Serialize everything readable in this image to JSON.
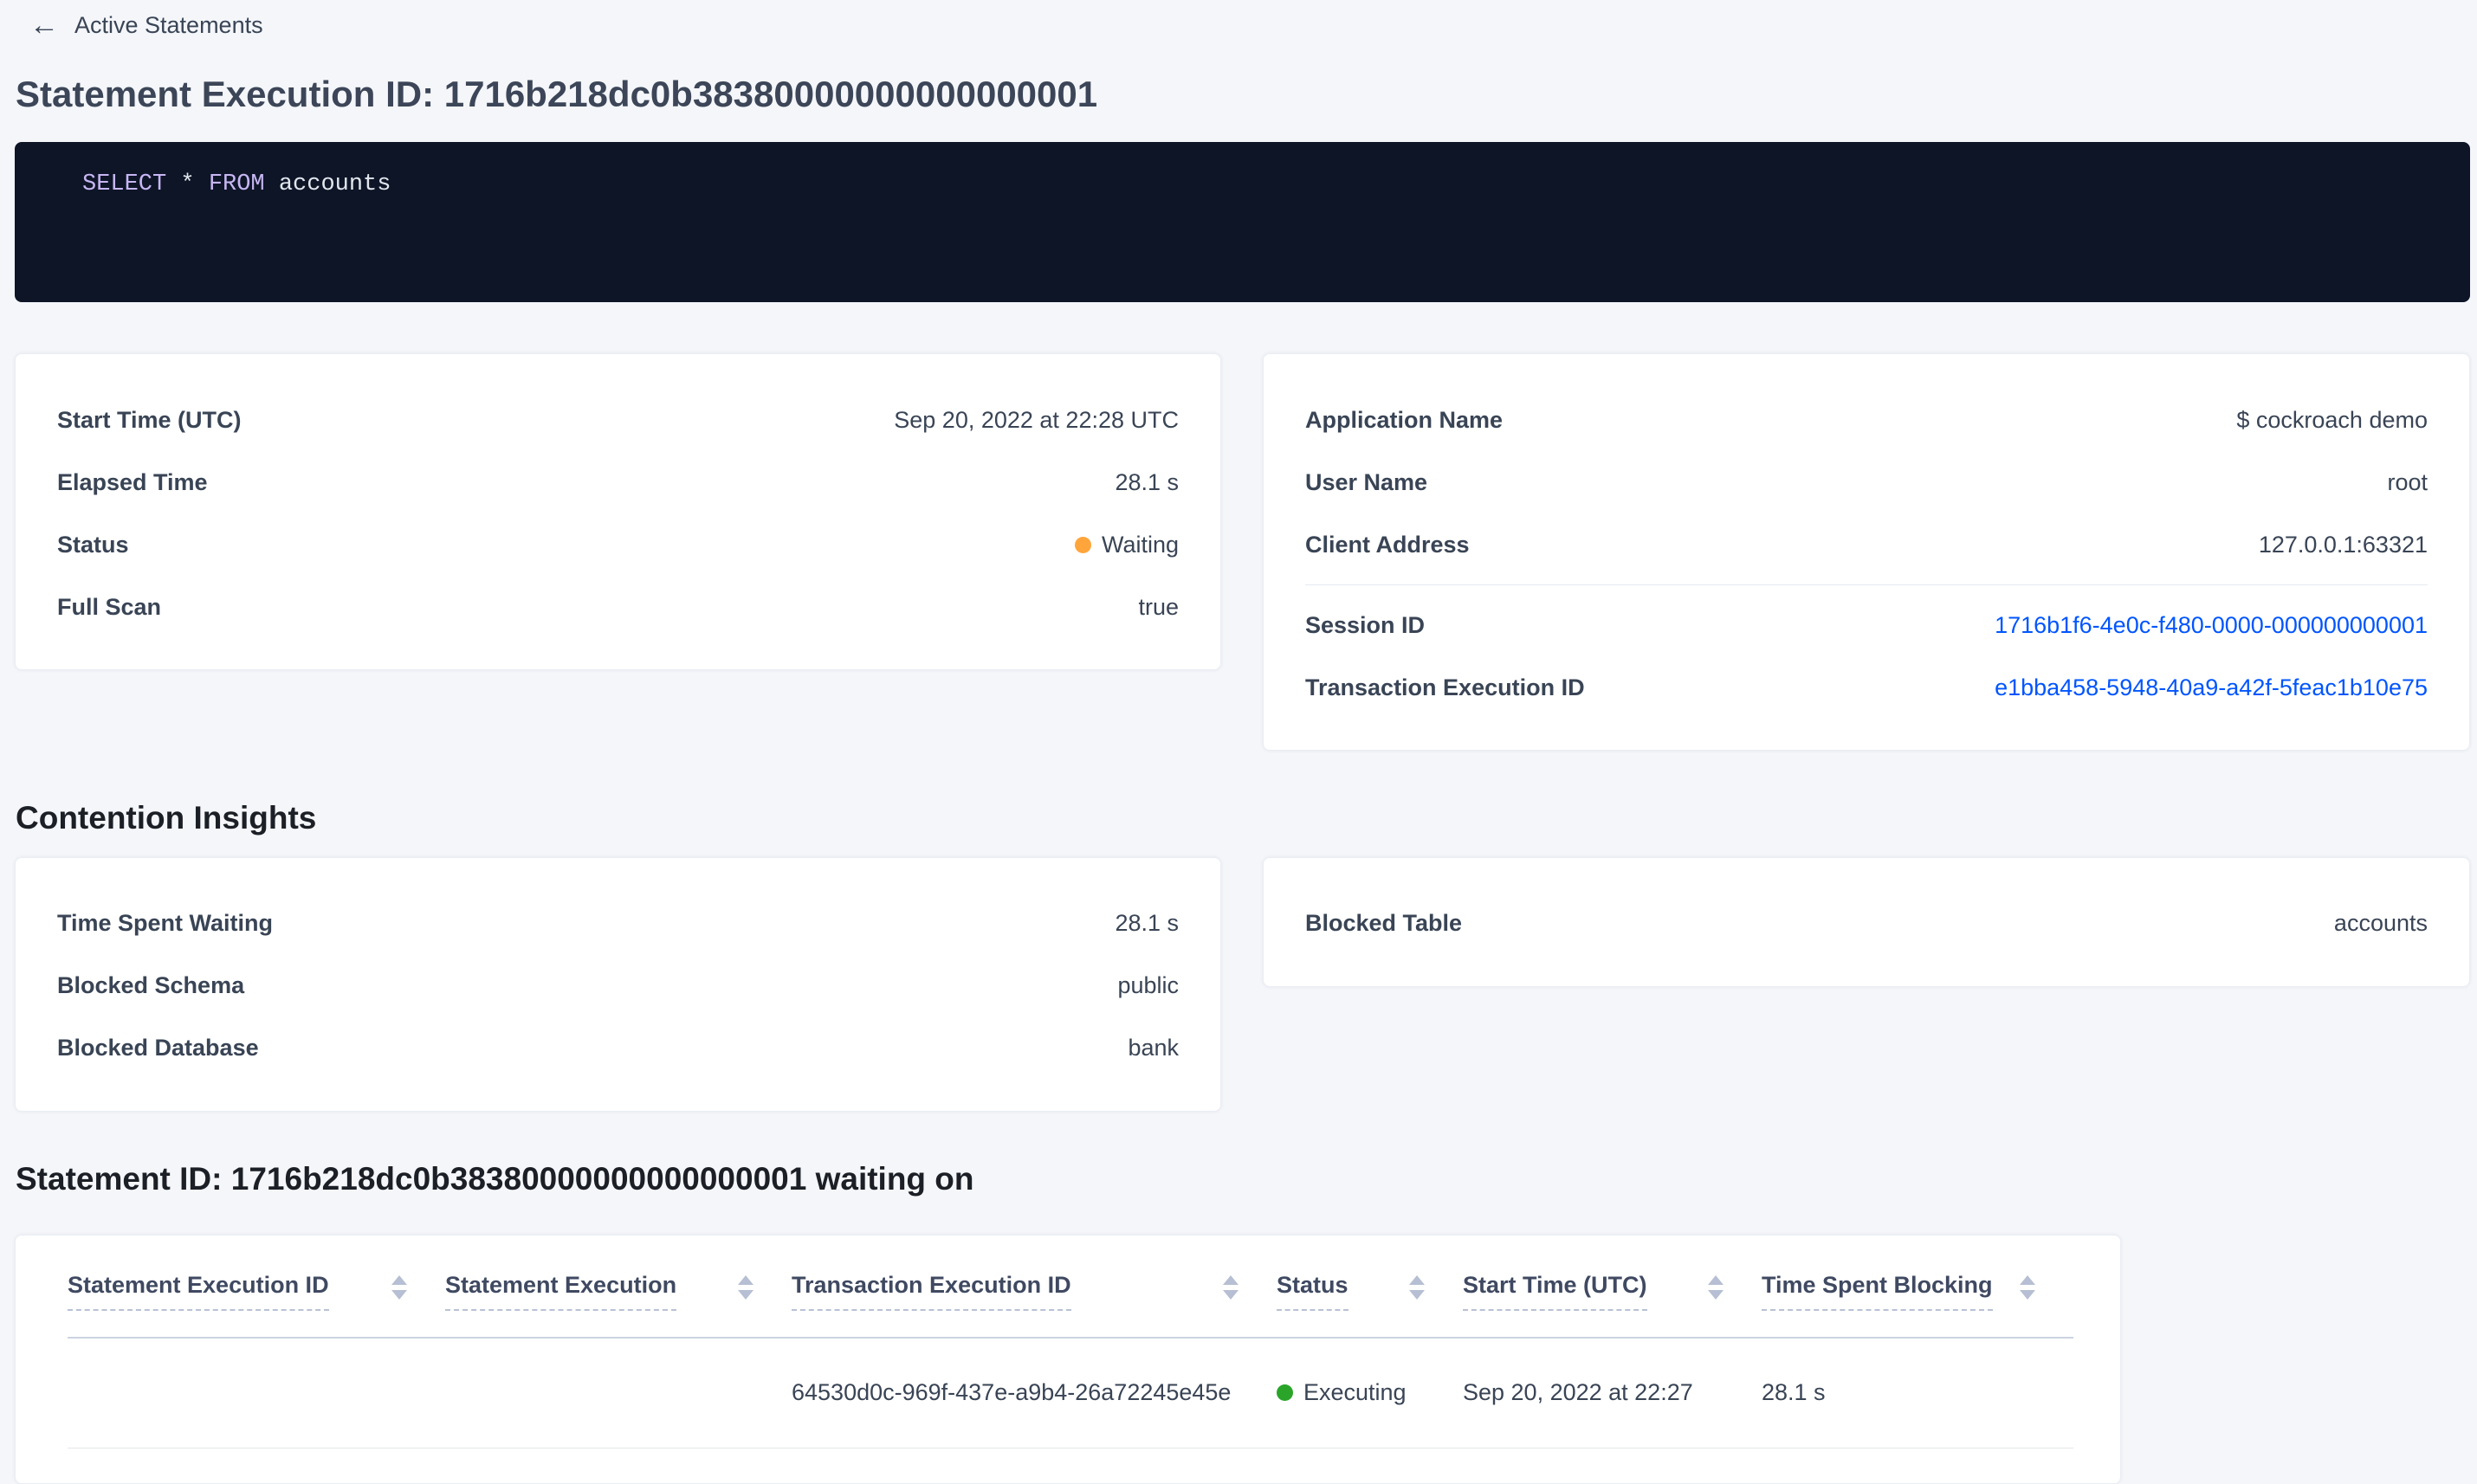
{
  "colors": {
    "page_bg": "#f4f6fa",
    "link": "#0055ff",
    "status_waiting": "#ffa53b",
    "status_executing": "#2aa52a"
  },
  "header": {
    "back_icon": "←",
    "back_label": "Active Statements",
    "title": "Statement Execution ID: 1716b218dc0b38380000000000000001"
  },
  "sql": {
    "kw_select": "SELECT",
    "star": " * ",
    "kw_from": "FROM",
    "ident": " accounts"
  },
  "overview": {
    "left": {
      "rows": [
        {
          "label": "Start Time (UTC)",
          "value": "Sep 20, 2022 at 22:28 UTC"
        },
        {
          "label": "Elapsed Time",
          "value": "28.1 s"
        },
        {
          "label": "Status",
          "value": "Waiting"
        },
        {
          "label": "Full Scan",
          "value": "true"
        }
      ]
    },
    "right": {
      "rows_top": [
        {
          "label": "Application Name",
          "value": "$ cockroach demo"
        },
        {
          "label": "User Name",
          "value": "root"
        },
        {
          "label": "Client Address",
          "value": "127.0.0.1:63321"
        }
      ],
      "rows_links": [
        {
          "label": "Session ID",
          "value": "1716b1f6-4e0c-f480-0000-000000000001"
        },
        {
          "label": "Transaction Execution ID",
          "value": "e1bba458-5948-40a9-a42f-5feac1b10e75"
        }
      ]
    }
  },
  "contention": {
    "heading": "Contention Insights",
    "left_rows": [
      {
        "label": "Time Spent Waiting",
        "value": "28.1 s"
      },
      {
        "label": "Blocked Schema",
        "value": "public"
      },
      {
        "label": "Blocked Database",
        "value": "bank"
      }
    ],
    "right_rows": [
      {
        "label": "Blocked Table",
        "value": "accounts"
      }
    ]
  },
  "waiting_table": {
    "heading": "Statement ID: 1716b218dc0b38380000000000000001 waiting on",
    "columns": [
      {
        "label": "Statement Execution ID"
      },
      {
        "label": "Statement Execution"
      },
      {
        "label": "Transaction Execution ID"
      },
      {
        "label": "Status"
      },
      {
        "label": "Start Time (UTC)"
      },
      {
        "label": "Time Spent Blocking"
      }
    ],
    "rows": [
      {
        "statement_execution_id": "",
        "statement_execution": "",
        "transaction_execution_id": "64530d0c-969f-437e-a9b4-26a72245e45e",
        "status": "Executing",
        "start_time": "Sep 20, 2022 at 22:27",
        "time_spent_blocking": "28.1 s"
      }
    ]
  }
}
